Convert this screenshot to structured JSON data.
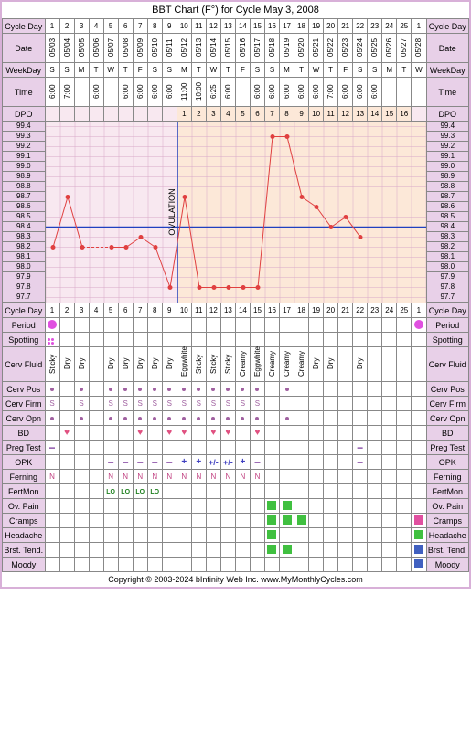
{
  "title": "BBT Chart (F°) for Cycle May 3, 2008",
  "footer": "Copyright © 2003-2024 bInfinity Web Inc.    www.MyMonthlyCycles.com",
  "labels": {
    "cycleDay": "Cycle Day",
    "date": "Date",
    "weekday": "WeekDay",
    "time": "Time",
    "dpo": "DPO",
    "period": "Period",
    "spotting": "Spotting",
    "cervFluid": "Cerv Fluid",
    "cervPos": "Cerv Pos",
    "cervFirm": "Cerv Firm",
    "cervOpn": "Cerv Opn",
    "bd": "BD",
    "pregTest": "Preg Test",
    "opk": "OPK",
    "ferning": "Ferning",
    "fertMon": "FertMon",
    "ovPain": "Ov. Pain",
    "cramps": "Cramps",
    "headache": "Headache",
    "brstTend": "Brst. Tend.",
    "moody": "Moody"
  },
  "cycleDays": [
    1,
    2,
    3,
    4,
    5,
    6,
    7,
    8,
    9,
    10,
    11,
    12,
    13,
    14,
    15,
    16,
    17,
    18,
    19,
    20,
    21,
    22,
    23,
    24,
    25,
    1
  ],
  "dates": [
    "05/03",
    "05/04",
    "05/05",
    "05/06",
    "05/07",
    "05/08",
    "05/09",
    "05/10",
    "05/11",
    "05/12",
    "05/13",
    "05/14",
    "05/15",
    "05/16",
    "05/17",
    "05/18",
    "05/19",
    "05/20",
    "05/21",
    "05/22",
    "05/23",
    "05/24",
    "05/25",
    "05/26",
    "05/27",
    "05/28"
  ],
  "weekdays": [
    "S",
    "S",
    "M",
    "T",
    "W",
    "T",
    "F",
    "S",
    "S",
    "M",
    "T",
    "W",
    "T",
    "F",
    "S",
    "S",
    "M",
    "T",
    "W",
    "T",
    "F",
    "S",
    "S",
    "M",
    "T",
    "W"
  ],
  "times": [
    "6:00",
    "7:00",
    "",
    "6:00",
    "",
    "6:00",
    "6:00",
    "6:00",
    "6:00",
    "11:00",
    "10:00",
    "6:25",
    "6:00",
    "",
    "6:00",
    "6:00",
    "6:00",
    "6:00",
    "6:00",
    "7:00",
    "6:00",
    "6:00",
    "6:00",
    "",
    "",
    ""
  ],
  "dpo": [
    "",
    "",
    "",
    "",
    "",
    "",
    "",
    "",
    "",
    1,
    2,
    3,
    4,
    5,
    6,
    7,
    8,
    9,
    10,
    11,
    12,
    13,
    14,
    15,
    16,
    ""
  ],
  "tempScale": [
    99.4,
    99.3,
    99.2,
    99.1,
    99.0,
    98.9,
    98.8,
    98.7,
    98.6,
    98.5,
    98.4,
    98.3,
    98.2,
    98.1,
    98.0,
    97.9,
    97.8,
    97.7
  ],
  "chart": {
    "ovulationCol": 9,
    "coverline": 98.4,
    "lutealBg": "#fce8d8",
    "follicularBg": "#f8e8f0",
    "gridColor": "#d8a8c8",
    "lineColor": "#e04040",
    "pointColor": "#e04040",
    "coverlineColor": "#2040c0",
    "ovLineColor": "#2040c0",
    "ovText": "OVULATION",
    "points": [
      {
        "day": 1,
        "temp": 98.2
      },
      {
        "day": 2,
        "temp": 98.7
      },
      {
        "day": 3,
        "temp": 98.2,
        "dashed": true
      },
      {
        "day": 5,
        "temp": 98.2,
        "dashedFrom": true
      },
      {
        "day": 6,
        "temp": 98.2
      },
      {
        "day": 7,
        "temp": 98.3
      },
      {
        "day": 8,
        "temp": 98.2
      },
      {
        "day": 9,
        "temp": 97.8
      },
      {
        "day": 10,
        "temp": 98.7
      },
      {
        "day": 11,
        "temp": 97.8
      },
      {
        "day": 12,
        "temp": 97.8
      },
      {
        "day": 13,
        "temp": 97.8
      },
      {
        "day": 14,
        "temp": 97.8
      },
      {
        "day": 15,
        "temp": 97.8
      },
      {
        "day": 16,
        "temp": 99.3
      },
      {
        "day": 17,
        "temp": 99.3
      },
      {
        "day": 18,
        "temp": 98.7
      },
      {
        "day": 19,
        "temp": 98.6
      },
      {
        "day": 20,
        "temp": 98.4
      },
      {
        "day": 21,
        "temp": 98.5
      },
      {
        "day": 22,
        "temp": 98.3
      }
    ]
  },
  "rows": {
    "period": {
      "1": "dot",
      "26": "dot"
    },
    "spotting": {
      "1": "dots"
    },
    "cervFluid": {
      "1": "Sticky",
      "2": "Dry",
      "3": "Dry",
      "5": "Dry",
      "6": "Dry",
      "7": "Dry",
      "8": "Dry",
      "9": "Dry",
      "10": "Eggwhite",
      "11": "Sticky",
      "12": "Sticky",
      "13": "Sticky",
      "14": "Creamy",
      "15": "Eggwhite",
      "16": "Creamy",
      "17": "Creamy",
      "18": "Creamy",
      "19": "Dry",
      "20": "Dry",
      "22": "Dry"
    },
    "cervPos": {
      "1": "dot",
      "3": "dot",
      "5": "dot",
      "6": "dot",
      "7": "dot",
      "8": "dot",
      "9": "dot",
      "10": "dot",
      "11": "dot",
      "12": "dot",
      "13": "dot",
      "14": "dot",
      "15": "dot",
      "17": "dot"
    },
    "cervFirm": {
      "1": "S",
      "3": "S",
      "5": "S",
      "6": "S",
      "7": "S",
      "8": "S",
      "9": "S",
      "10": "S",
      "11": "S",
      "12": "S",
      "13": "S",
      "14": "S",
      "15": "S"
    },
    "cervOpn": {
      "1": "dot",
      "3": "dot",
      "5": "dot",
      "6": "dot",
      "7": "dot",
      "8": "dot",
      "9": "dot",
      "10": "dot",
      "11": "dot",
      "12": "dot",
      "13": "dot",
      "14": "dot",
      "15": "dot",
      "17": "dot"
    },
    "bd": {
      "2": "heart",
      "7": "heart",
      "9": "heart",
      "10": "heart",
      "12": "heart",
      "13": "heart",
      "15": "heart"
    },
    "pregTest": {
      "1": "dash",
      "22": "dash"
    },
    "opk": {
      "5": "dash",
      "6": "dash",
      "7": "dash",
      "8": "dash",
      "9": "dash",
      "10": "plus",
      "11": "plus",
      "12": "plusminus",
      "13": "plusminus",
      "14": "plus",
      "15": "dash",
      "22": "dash"
    },
    "ferning": {
      "1": "N",
      "5": "N",
      "6": "N",
      "7": "N",
      "8": "N",
      "9": "N",
      "10": "N",
      "11": "N",
      "12": "N",
      "13": "N",
      "14": "N",
      "15": "N"
    },
    "fertMon": {
      "5": "LO",
      "6": "LO",
      "7": "LO",
      "8": "LO"
    },
    "ovPain": {
      "16": "green",
      "17": "green"
    },
    "cramps": {
      "16": "green",
      "17": "green",
      "18": "green",
      "26": "pink"
    },
    "headache": {
      "16": "green",
      "26": "green"
    },
    "brstTend": {
      "16": "green",
      "17": "green",
      "26": "blue"
    },
    "moody": {
      "26": "blue"
    }
  }
}
